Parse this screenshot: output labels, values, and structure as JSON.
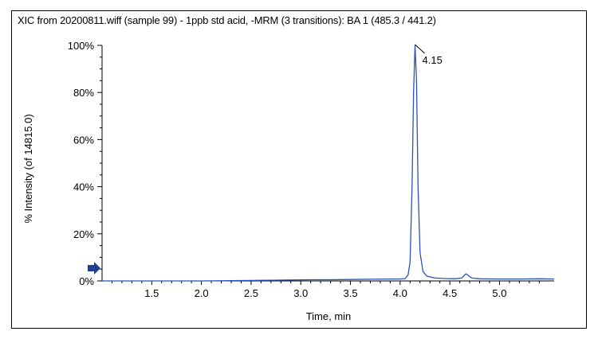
{
  "chart_data": {
    "type": "line",
    "title": "XIC from 20200811.wiff (sample 99) - 1ppb std acid, -MRM (3 transitions): BA 1 (485.3 / 441.2)",
    "xlabel": "Time, min",
    "ylabel": "% Intensity (of 14815.0)",
    "xlim": [
      1.0,
      5.55
    ],
    "ylim": [
      0,
      100
    ],
    "x_ticks": [
      1.5,
      2.0,
      2.5,
      3.0,
      3.5,
      4.0,
      4.5,
      5.0
    ],
    "x_tick_labels": [
      "1.5",
      "2.0",
      "2.5",
      "3.0",
      "3.5",
      "4.0",
      "4.5",
      "5.0"
    ],
    "y_ticks": [
      0,
      20,
      40,
      60,
      80,
      100
    ],
    "y_tick_labels": [
      "0%",
      "20%",
      "40%",
      "60%",
      "80%",
      "100%"
    ],
    "grid": false,
    "series": [
      {
        "color": "#2a52be",
        "x": [
          1.0,
          1.5,
          2.0,
          2.5,
          2.7,
          2.9,
          3.1,
          3.3,
          3.5,
          3.7,
          3.9,
          4.0,
          4.05,
          4.08,
          4.1,
          4.12,
          4.135,
          4.15,
          4.165,
          4.18,
          4.2,
          4.23,
          4.27,
          4.35,
          4.45,
          4.55,
          4.62,
          4.66,
          4.68,
          4.72,
          4.8,
          5.0,
          5.2,
          5.4,
          5.55
        ],
        "y": [
          0,
          0,
          0,
          0.2,
          0.3,
          0.4,
          0.5,
          0.5,
          0.6,
          0.7,
          0.8,
          0.8,
          1.0,
          2.5,
          8,
          40,
          80,
          100,
          85,
          40,
          12,
          4,
          2,
          1.2,
          1.0,
          0.9,
          1.2,
          3,
          2.5,
          1.2,
          0.9,
          0.8,
          0.8,
          0.9,
          0.8
        ]
      }
    ],
    "annotations": [
      {
        "x": 4.15,
        "y": 100,
        "text": "4.15"
      }
    ]
  }
}
